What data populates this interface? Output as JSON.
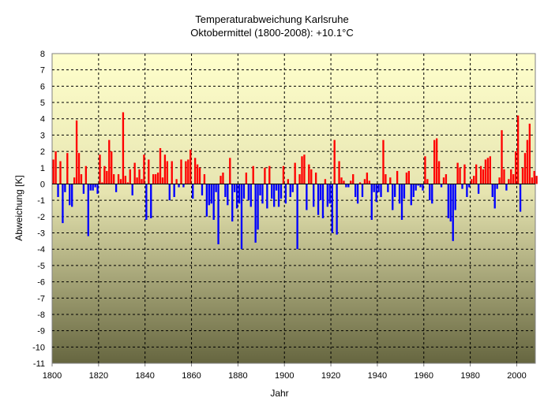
{
  "chart_data": {
    "type": "bar",
    "title": "Temperaturabweichung Karlsruhe",
    "subtitle": "Oktobermittel (1800-2008): +10.1°C",
    "xlabel": "Jahr",
    "ylabel": "Abweichung [K]",
    "xlim": [
      1800,
      2008
    ],
    "ylim": [
      -11,
      8
    ],
    "x_ticks": [
      1800,
      1820,
      1840,
      1860,
      1880,
      1900,
      1920,
      1940,
      1960,
      1980,
      2000
    ],
    "y_ticks": [
      8,
      7,
      6,
      5,
      4,
      3,
      2,
      1,
      0,
      -1,
      -2,
      -3,
      -4,
      -5,
      -6,
      -7,
      -8,
      -9,
      -10,
      -11
    ],
    "grid": true,
    "legend": "none",
    "colors": {
      "positive": "#ff0000",
      "negative": "#0000ff",
      "background_top": "#ffffcc",
      "background_bottom": "#666640"
    },
    "start_year": 1800,
    "values": [
      1.5,
      2.0,
      -0.8,
      1.4,
      -2.4,
      -0.5,
      1.9,
      -1.3,
      -1.4,
      0.4,
      3.9,
      1.9,
      0.6,
      -0.6,
      1.1,
      -3.2,
      -0.4,
      -0.4,
      -0.2,
      -0.6,
      1.8,
      0.1,
      1.1,
      0.8,
      2.7,
      2.0,
      0.6,
      -0.5,
      0.6,
      0.3,
      4.4,
      0.5,
      0.1,
      0.9,
      -0.7,
      1.3,
      0.4,
      0.9,
      0.3,
      1.8,
      -2.2,
      1.5,
      -2.1,
      0.6,
      0.6,
      0.7,
      2.2,
      0.4,
      1.8,
      1.4,
      -1.0,
      1.4,
      -0.8,
      0.3,
      -0.2,
      1.5,
      -0.2,
      1.4,
      1.5,
      2.1,
      -0.9,
      1.6,
      1.2,
      1.0,
      -0.7,
      0.6,
      -2.0,
      -1.3,
      -1.2,
      -2.2,
      -0.5,
      -3.7,
      0.5,
      0.7,
      -0.8,
      -1.3,
      1.6,
      -2.3,
      -0.5,
      -1.5,
      -1.2,
      -4.0,
      -0.9,
      0.7,
      -1.0,
      -1.4,
      1.1,
      -3.6,
      -2.8,
      -0.7,
      -1.2,
      1.0,
      -1.5,
      1.1,
      -0.9,
      -1.4,
      -0.4,
      -1.4,
      -0.9,
      1.1,
      -1.2,
      0.3,
      -0.8,
      -0.5,
      1.3,
      -4.0,
      0.6,
      1.7,
      1.8,
      -1.6,
      1.2,
      0.9,
      -1.4,
      0.7,
      -1.9,
      -1.0,
      -2.1,
      0.3,
      -1.4,
      -1.2,
      -3.0,
      2.7,
      -3.1,
      1.4,
      0.4,
      0.2,
      -0.2,
      -0.2,
      0.2,
      0.6,
      -0.8,
      -1.2,
      0.1,
      -0.8,
      0.3,
      0.7,
      0.2,
      -2.2,
      -0.5,
      -1.1,
      -0.5,
      -0.8,
      2.7,
      0.6,
      -0.5,
      0.4,
      -1.6,
      -0.8,
      0.8,
      -1.2,
      -2.2,
      -0.9,
      0.7,
      0.8,
      -1.3,
      -0.8,
      -0.4,
      -0.1,
      -0.2,
      -0.4,
      1.7,
      0.3,
      -1.0,
      -1.2,
      2.7,
      2.8,
      1.4,
      -0.2,
      0.4,
      0.6,
      -2.1,
      -2.3,
      -3.5,
      -1.6,
      1.3,
      1.0,
      -0.3,
      1.2,
      -0.8,
      -0.2,
      0.3,
      0.5,
      1.2,
      -0.6,
      1.1,
      0.9,
      1.5,
      1.6,
      1.7,
      -0.8,
      -1.5,
      -0.3,
      0.4,
      3.3,
      0.9,
      -0.4,
      0.3,
      0.9,
      0.6,
      2.0,
      4.2,
      -1.7,
      1.0,
      1.9,
      2.7,
      3.7,
      0.4,
      0.8,
      0.5
    ]
  }
}
